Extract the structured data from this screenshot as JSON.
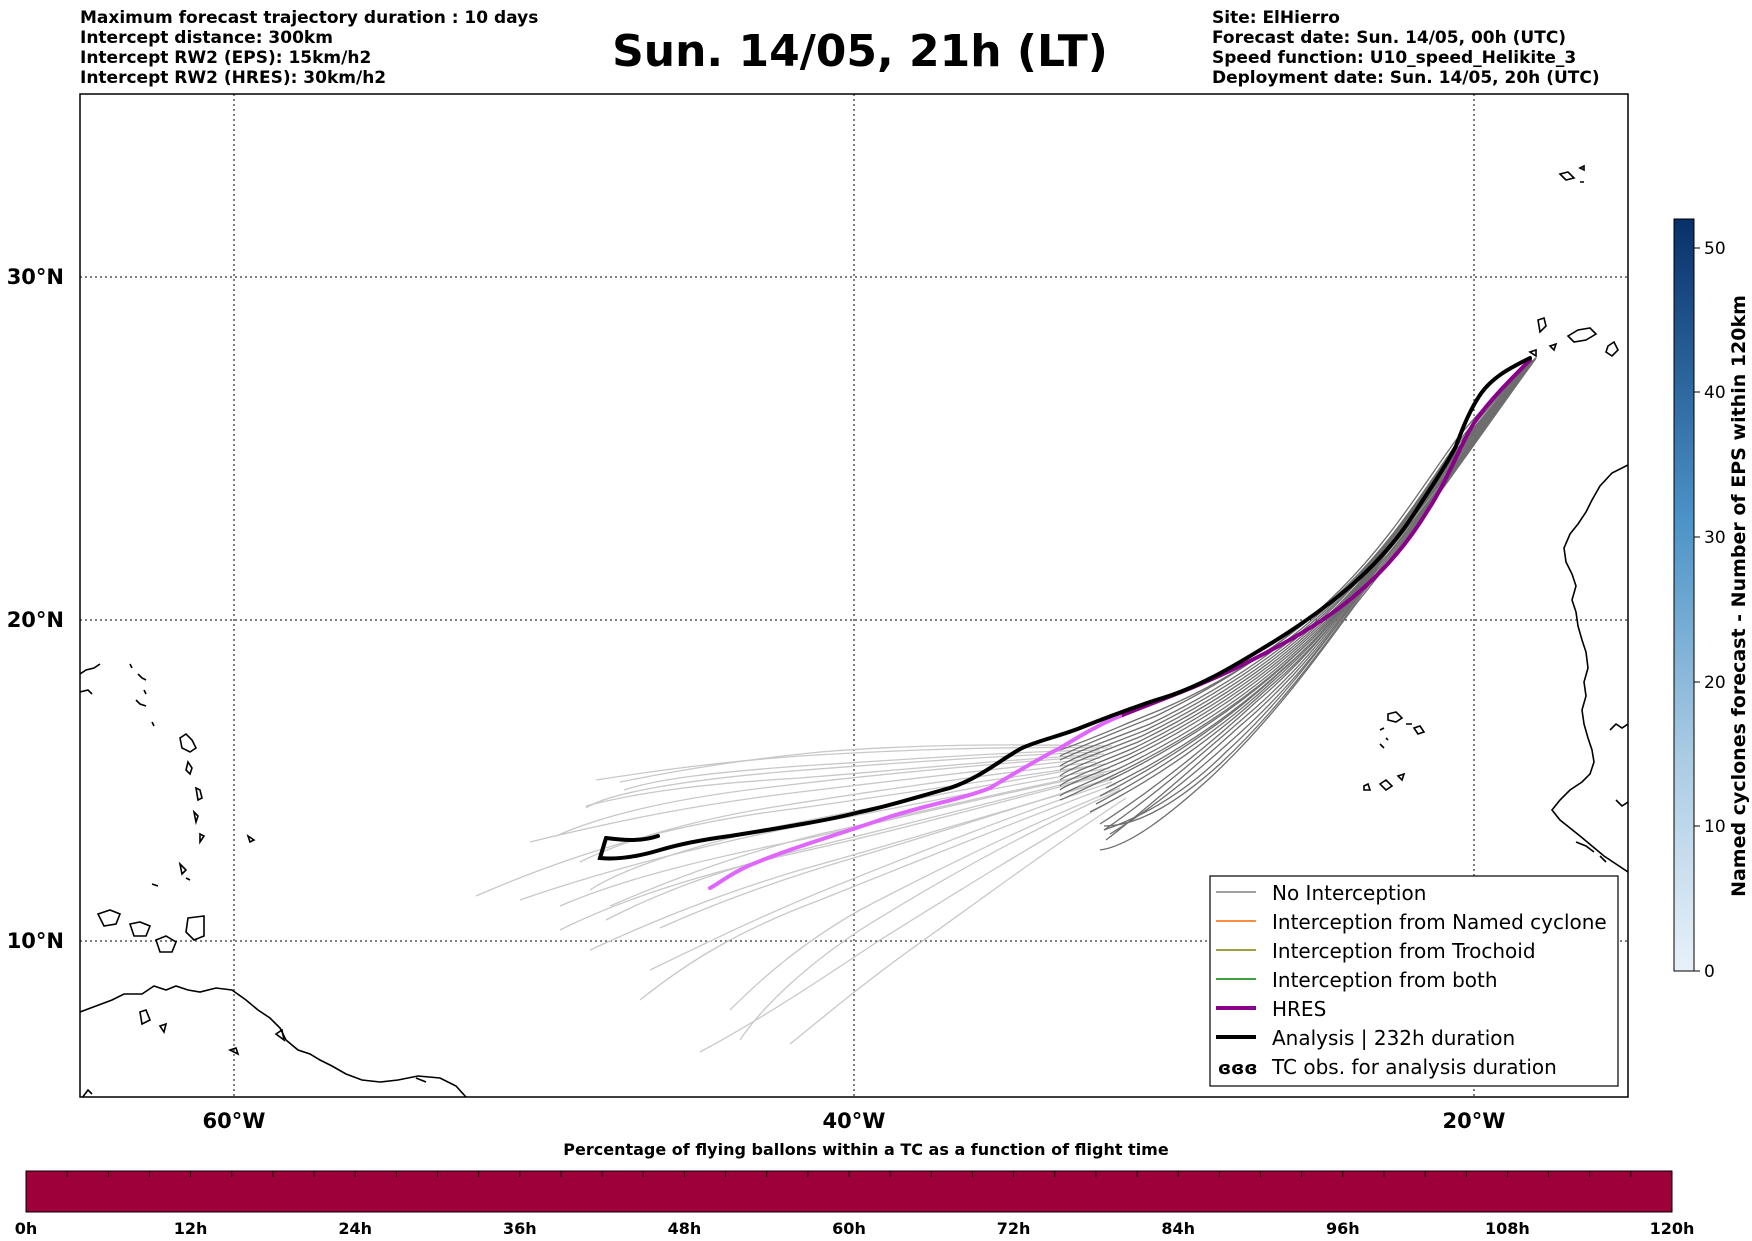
{
  "header": {
    "left": [
      "Maximum forecast trajectory duration : 10 days",
      "Intercept distance: 300km",
      "Intercept RW2 (EPS):  15km/h2",
      "Intercept RW2 (HRES): 30km/h2"
    ],
    "title": "Sun. 14/05, 21h (LT)",
    "right": [
      "Site: ElHierro",
      "Forecast date: Sun. 14/05, 00h (UTC)",
      "Speed function: U10_speed_Helikite_3",
      "Deployment date: Sun. 14/05, 20h (UTC)"
    ]
  },
  "map": {
    "lat_labels": [
      "30°N",
      "20°N",
      "10°N"
    ],
    "lon_labels": [
      "60°W",
      "40°W",
      "20°W"
    ],
    "gridlines": "dotted"
  },
  "legend": {
    "items": [
      {
        "label": "No Interception",
        "color": "#808080",
        "style": "thin"
      },
      {
        "label": "Interception from Named cyclone",
        "color": "#ff6600",
        "style": "thin"
      },
      {
        "label": "Interception from Trochoid",
        "color": "#808000",
        "style": "thin"
      },
      {
        "label": "Interception from both",
        "color": "#008000",
        "style": "thin"
      },
      {
        "label": "HRES",
        "color": "#8b008b",
        "style": "thick"
      },
      {
        "label": "Analysis | 232h duration",
        "color": "#000000",
        "style": "thick"
      },
      {
        "label": "TC obs. for analysis duration",
        "color": "#000000",
        "style": "symbol",
        "symbol": "ɞɞɞ"
      }
    ]
  },
  "colorbar": {
    "label": "Named cyclones forecast - Number of EPS within 120km",
    "ticks": [
      "0",
      "10",
      "20",
      "30",
      "40",
      "50"
    ],
    "min": 0,
    "max": 52
  },
  "bottom_bar": {
    "title": "Percentage of flying ballons within a TC as a function of flight time",
    "ticks": [
      "0h",
      "12h",
      "24h",
      "36h",
      "48h",
      "60h",
      "72h",
      "84h",
      "96h",
      "108h",
      "120h"
    ],
    "fill_color": "#9e003a"
  },
  "colors": {
    "hres_early": "#e066ff",
    "hres_late": "#8b008b",
    "analysis": "#000000",
    "eps_light": "#c8c8c8",
    "eps_dark": "#6e6e6e"
  }
}
